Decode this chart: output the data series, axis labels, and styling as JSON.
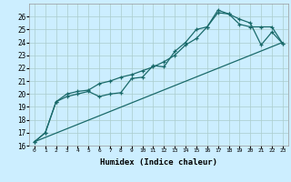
{
  "xlabel": "Humidex (Indice chaleur)",
  "background_color": "#cceeff",
  "grid_color": "#aacccc",
  "line_color": "#1a6a6a",
  "xlim_min": -0.5,
  "xlim_max": 23.5,
  "ylim_min": 16,
  "ylim_max": 27,
  "xticks": [
    0,
    1,
    2,
    3,
    4,
    5,
    6,
    7,
    8,
    9,
    10,
    11,
    12,
    13,
    14,
    15,
    16,
    17,
    18,
    19,
    20,
    21,
    22,
    23
  ],
  "yticks": [
    16,
    17,
    18,
    19,
    20,
    21,
    22,
    23,
    24,
    25,
    26
  ],
  "line1_x": [
    0,
    1,
    2,
    3,
    4,
    5,
    6,
    7,
    8,
    9,
    10,
    11,
    12,
    13,
    14,
    15,
    16,
    17,
    18,
    19,
    20,
    21,
    22,
    23
  ],
  "line1_y": [
    16.3,
    17.0,
    19.4,
    19.8,
    20.0,
    20.2,
    19.8,
    20.0,
    20.1,
    21.2,
    21.3,
    22.2,
    22.1,
    23.3,
    24.0,
    25.0,
    25.2,
    26.3,
    26.2,
    25.4,
    25.2,
    25.2,
    25.2,
    23.9
  ],
  "line2_x": [
    0,
    1,
    2,
    3,
    4,
    5,
    6,
    7,
    8,
    9,
    10,
    11,
    12,
    13,
    14,
    15,
    16,
    17,
    18,
    19,
    20,
    21,
    22,
    23
  ],
  "line2_y": [
    16.3,
    17.0,
    19.4,
    20.0,
    20.2,
    20.3,
    20.8,
    21.0,
    21.3,
    21.5,
    21.8,
    22.1,
    22.5,
    23.0,
    23.8,
    24.3,
    25.2,
    26.5,
    26.2,
    25.8,
    25.5,
    23.8,
    24.8,
    23.9
  ],
  "line3_x": [
    0,
    23
  ],
  "line3_y": [
    16.3,
    24.0
  ],
  "marker_size": 3.5,
  "linewidth": 0.9
}
